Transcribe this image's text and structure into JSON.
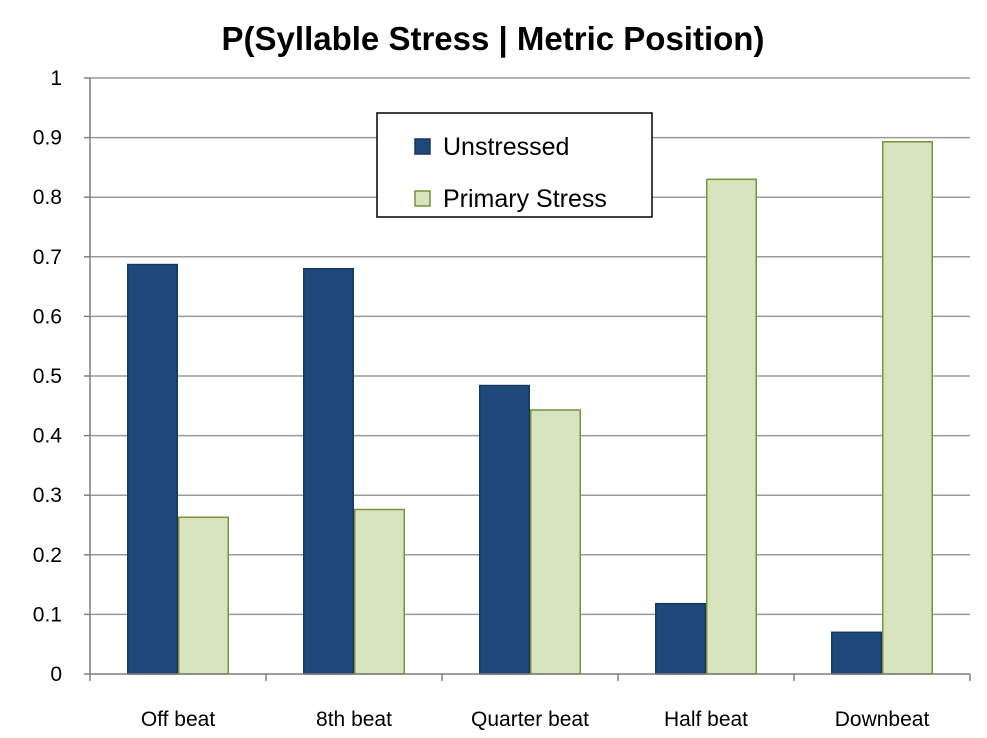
{
  "chart_data": {
    "type": "bar",
    "title": "P(Syllable Stress | Metric Position)",
    "xlabel": "",
    "ylabel": "",
    "categories": [
      "Off beat",
      "8th beat",
      "Quarter beat",
      "Half beat",
      "Downbeat"
    ],
    "series": [
      {
        "name": "Unstressed",
        "color": "#1f497d",
        "stroke": "#17375e",
        "values": [
          0.687,
          0.68,
          0.484,
          0.118,
          0.07
        ]
      },
      {
        "name": "Primary Stress",
        "color": "#d7e4bd",
        "stroke": "#77933c",
        "values": [
          0.263,
          0.276,
          0.443,
          0.83,
          0.893
        ]
      }
    ],
    "ylim": [
      0,
      1
    ],
    "yticks": [
      "0",
      "0.1",
      "0.2",
      "0.3",
      "0.4",
      "0.5",
      "0.6",
      "0.7",
      "0.8",
      "0.9",
      "1"
    ],
    "grid": true,
    "legend_position": "top-center",
    "colors": {
      "gridline": "#9a9a9a",
      "axis": "#7f7f7f"
    }
  }
}
